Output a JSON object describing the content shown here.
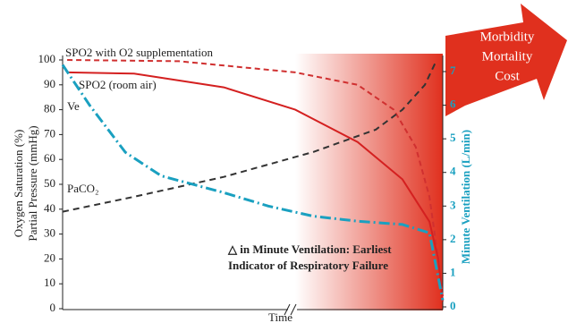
{
  "chart_data": {
    "type": "line",
    "arrow_text": [
      "Morbidity",
      "Mortality",
      "Cost"
    ],
    "ylabel": [
      "Oxygen Saturation (%)",
      "Partial Pressure (mmHg)"
    ],
    "y2label": "Minute Ventilation (L/min)",
    "xlabel": "Time",
    "annotation": [
      "△ in Minute Ventilation: Earliest",
      "Indicator of Respiratory Failure"
    ],
    "xlim": [
      0,
      100
    ],
    "ylim": [
      0,
      100
    ],
    "yticks": [
      0,
      10,
      20,
      30,
      40,
      50,
      60,
      70,
      80,
      90,
      100
    ],
    "y2lim": [
      0,
      7
    ],
    "y2ticks": [
      0,
      1,
      2,
      3,
      4,
      5,
      6,
      7
    ],
    "series": [
      {
        "name": "SPO2 with O2 supplementation",
        "color": "#d03030",
        "dash": "6,4",
        "x": [
          1.2,
          30.6,
          61.2,
          77.6,
          87.1,
          92.9,
          96.5,
          98.8,
          100
        ],
        "values": [
          100,
          99.5,
          95,
          90,
          80,
          65,
          45,
          20,
          5
        ]
      },
      {
        "name": "SPO2 (room air)",
        "color": "#d42020",
        "dash": "none",
        "x": [
          1.2,
          18.8,
          42.4,
          61.2,
          77.6,
          89.4,
          96.5,
          98.8,
          100
        ],
        "values": [
          95,
          94.5,
          89,
          80,
          67,
          52,
          35,
          20,
          3
        ]
      },
      {
        "name": "PaCO₂",
        "color": "#333333",
        "dash": "7,5",
        "x": [
          0,
          18.8,
          42.4,
          65.9,
          82.4,
          89.4,
          95.3,
          98.1
        ],
        "values": [
          39,
          45,
          53,
          63,
          72,
          80,
          90,
          99
        ]
      },
      {
        "name": "Ve",
        "color": "#1aa0c0",
        "dash": "12,4,2,4",
        "axis": "y2",
        "x": [
          0,
          7.1,
          16.5,
          25.9,
          42.4,
          54.1,
          65.9,
          77.6,
          89.4,
          96.5,
          100
        ],
        "values": [
          7.2,
          6,
          4.6,
          3.9,
          3.4,
          3.0,
          2.7,
          2.55,
          2.45,
          2.2,
          0.2
        ]
      }
    ]
  }
}
